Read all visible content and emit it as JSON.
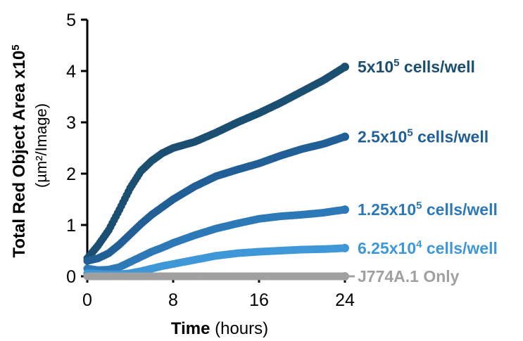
{
  "chart_data": {
    "type": "scatter",
    "ylabel": {
      "main": "Total Red Object Area x10",
      "main_sup": "5",
      "sub": "(µm²/Image)"
    },
    "xlabel": {
      "bold": "Time",
      "rest": " (hours)"
    },
    "xlim": [
      0,
      24
    ],
    "ylim": [
      0,
      5
    ],
    "xticks": [
      "0",
      "8",
      "16",
      "24"
    ],
    "yticks": [
      "0",
      "1",
      "2",
      "3",
      "4",
      "5"
    ],
    "grid": false,
    "series": [
      {
        "label_pre": "5x10",
        "label_sup": "5",
        "label_post": " cells/well",
        "color": "#1b4f72",
        "points": [
          [
            0,
            0.35
          ],
          [
            1,
            0.6
          ],
          [
            2,
            0.9
          ],
          [
            3,
            1.3
          ],
          [
            4,
            1.72
          ],
          [
            5,
            2.05
          ],
          [
            6,
            2.25
          ],
          [
            7,
            2.4
          ],
          [
            8,
            2.5
          ],
          [
            10,
            2.62
          ],
          [
            12,
            2.8
          ],
          [
            14,
            3.0
          ],
          [
            16,
            3.18
          ],
          [
            18,
            3.38
          ],
          [
            20,
            3.6
          ],
          [
            22,
            3.82
          ],
          [
            24,
            4.08
          ]
        ]
      },
      {
        "label_pre": "2.5x10",
        "label_sup": "5",
        "label_post": " cells/well",
        "color": "#215f96",
        "points": [
          [
            0,
            0.3
          ],
          [
            1,
            0.35
          ],
          [
            2,
            0.45
          ],
          [
            3,
            0.62
          ],
          [
            4,
            0.82
          ],
          [
            5,
            1.02
          ],
          [
            6,
            1.2
          ],
          [
            7,
            1.35
          ],
          [
            8,
            1.5
          ],
          [
            10,
            1.75
          ],
          [
            12,
            1.95
          ],
          [
            14,
            2.08
          ],
          [
            16,
            2.2
          ],
          [
            18,
            2.35
          ],
          [
            20,
            2.48
          ],
          [
            22,
            2.58
          ],
          [
            24,
            2.72
          ]
        ]
      },
      {
        "label_pre": "1.25x10",
        "label_sup": "5",
        "label_post": " cells/well",
        "color": "#2d79b8",
        "points": [
          [
            0,
            0.15
          ],
          [
            1,
            0.12
          ],
          [
            2,
            0.13
          ],
          [
            3,
            0.18
          ],
          [
            4,
            0.28
          ],
          [
            5,
            0.38
          ],
          [
            6,
            0.48
          ],
          [
            7,
            0.56
          ],
          [
            8,
            0.65
          ],
          [
            10,
            0.8
          ],
          [
            12,
            0.93
          ],
          [
            14,
            1.03
          ],
          [
            16,
            1.12
          ],
          [
            18,
            1.17
          ],
          [
            20,
            1.2
          ],
          [
            22,
            1.24
          ],
          [
            24,
            1.3
          ]
        ]
      },
      {
        "label_pre": "6.25x10",
        "label_sup": "4",
        "label_post": " cells/well",
        "color": "#3e97d6",
        "points": [
          [
            0,
            0.06
          ],
          [
            1,
            0.05
          ],
          [
            2,
            0.04
          ],
          [
            3,
            0.04
          ],
          [
            4,
            0.06
          ],
          [
            5,
            0.1
          ],
          [
            6,
            0.15
          ],
          [
            7,
            0.2
          ],
          [
            8,
            0.24
          ],
          [
            10,
            0.32
          ],
          [
            12,
            0.4
          ],
          [
            14,
            0.45
          ],
          [
            16,
            0.48
          ],
          [
            18,
            0.5
          ],
          [
            20,
            0.52
          ],
          [
            22,
            0.53
          ],
          [
            24,
            0.55
          ]
        ]
      },
      {
        "label_pre": "J774A.1 Only",
        "label_sup": "",
        "label_post": "",
        "color": "#a0a0a0",
        "points": [
          [
            0,
            0.0
          ],
          [
            2,
            0.0
          ],
          [
            4,
            0.0
          ],
          [
            6,
            0.0
          ],
          [
            8,
            0.0
          ],
          [
            10,
            0.0
          ],
          [
            12,
            0.0
          ],
          [
            14,
            0.0
          ],
          [
            16,
            0.0
          ],
          [
            18,
            0.0
          ],
          [
            20,
            0.0
          ],
          [
            22,
            0.0
          ],
          [
            24,
            0.0
          ]
        ]
      }
    ]
  }
}
